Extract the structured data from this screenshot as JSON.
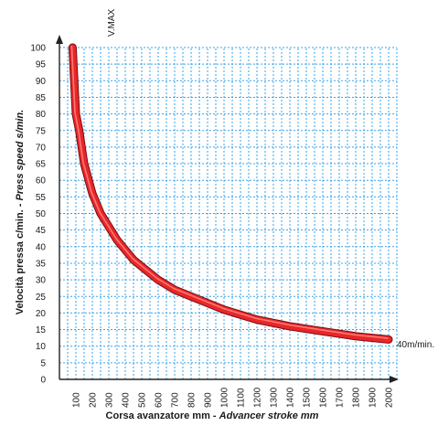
{
  "chart_data": {
    "type": "line",
    "xlabel_plain": "Corsa avanzatore mm - ",
    "xlabel_italic": "Advancer stroke mm",
    "ylabel_plain": "Velocità pressa c/min. - ",
    "ylabel_italic": "Press speed s/min.",
    "x_ticks": [
      "100",
      "200",
      "300",
      "400",
      "500",
      "600",
      "700",
      "800",
      "900",
      "1000",
      "1100",
      "1200",
      "1300",
      "1400",
      "1500",
      "1600",
      "1700",
      "1800",
      "1900",
      "2000"
    ],
    "y_ticks": [
      "0",
      "5",
      "10",
      "15",
      "20",
      "25",
      "30",
      "35",
      "40",
      "45",
      "50",
      "55",
      "60",
      "65",
      "70",
      "75",
      "80",
      "85",
      "90",
      "95",
      "100"
    ],
    "xlim": [
      0,
      2050
    ],
    "ylim": [
      0,
      100
    ],
    "grid": true,
    "vmax_label": "V.MAX",
    "end_label": "40m/min.",
    "series": [
      {
        "color": "#e8262b",
        "x": [
          80,
          100,
          120,
          150,
          200,
          250,
          300,
          350,
          400,
          450,
          500,
          600,
          700,
          800,
          900,
          1000,
          1200,
          1400,
          1600,
          1800,
          2000
        ],
        "y": [
          100,
          80,
          75,
          65,
          56,
          50,
          46,
          42,
          39,
          36,
          34,
          30,
          27,
          25,
          23,
          21,
          18,
          16,
          14.5,
          13,
          12
        ]
      }
    ]
  }
}
